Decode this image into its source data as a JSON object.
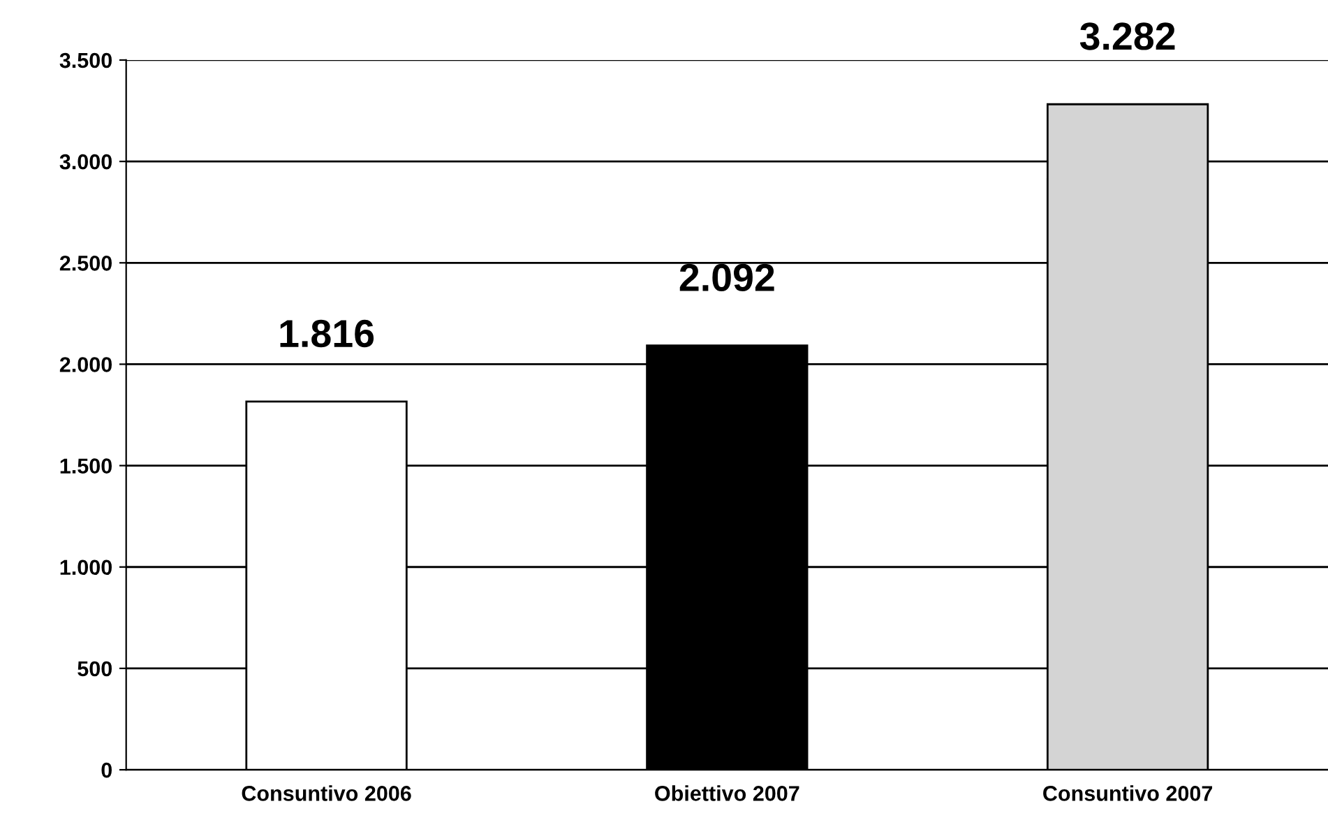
{
  "chart_data": {
    "type": "bar",
    "categories": [
      "Consuntivo 2006",
      "Obiettivo 2007",
      "Consuntivo 2007"
    ],
    "values": [
      1816,
      2092,
      3282
    ],
    "colors": [
      "#ffffff",
      "#000000",
      "#d4d4d4"
    ],
    "value_labels": [
      "1.816",
      "2.092",
      "3.282"
    ],
    "ylim": [
      0,
      3500
    ],
    "yticks": [
      0,
      {
        "value": 500,
        "label": "500"
      },
      {
        "value": 1000,
        "label": "1.000"
      },
      {
        "value": 1500,
        "label": "1.500"
      },
      {
        "value": 2000,
        "label": "2.000"
      },
      {
        "value": 2500,
        "label": "2.500"
      },
      {
        "value": 3000,
        "label": "3.000"
      },
      {
        "value": 3500,
        "label": "3.500"
      }
    ],
    "grid": "y",
    "legend": false
  }
}
